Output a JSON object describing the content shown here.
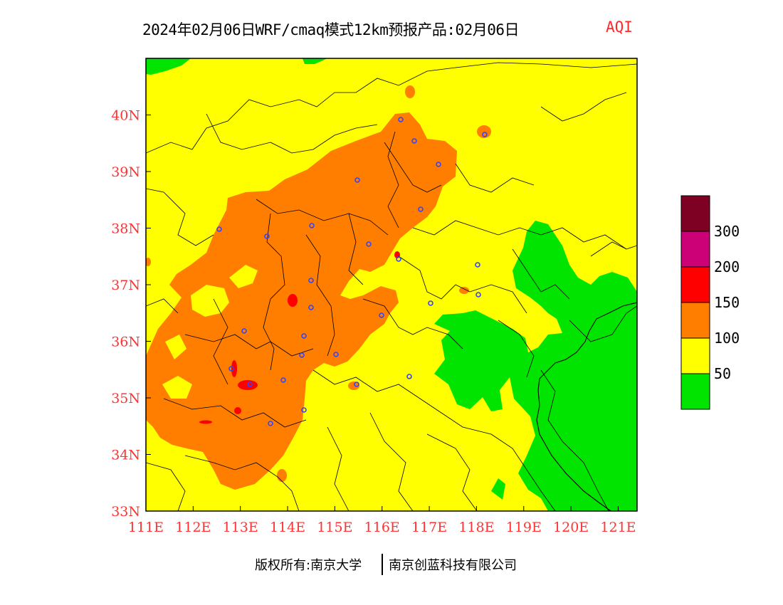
{
  "title": {
    "main": "2024年02月06日WRF/cmaq模式12km预报产品:02月06日",
    "variable": "AQI",
    "variable_color": "#ff2a2a"
  },
  "axes": {
    "x_ticks": [
      "111E",
      "112E",
      "113E",
      "114E",
      "115E",
      "116E",
      "117E",
      "118E",
      "119E",
      "120E",
      "121E"
    ],
    "y_ticks": [
      "33N",
      "34N",
      "35N",
      "36N",
      "37N",
      "38N",
      "39N",
      "40N"
    ],
    "lon_range": [
      111,
      121.4
    ],
    "lat_range": [
      33,
      41
    ],
    "tick_label_color": "#ff3333"
  },
  "legend": {
    "bins": [
      {
        "color": "#00e400"
      },
      {
        "color": "#ffff00"
      },
      {
        "color": "#ff7e00"
      },
      {
        "color": "#ff0000"
      },
      {
        "color": "#cc0077"
      },
      {
        "color": "#7e0023"
      }
    ],
    "labels": [
      "50",
      "100",
      "150",
      "200",
      "300"
    ]
  },
  "footer": {
    "left": "版权所有:南京大学",
    "right": "南京创蓝科技有限公司"
  }
}
